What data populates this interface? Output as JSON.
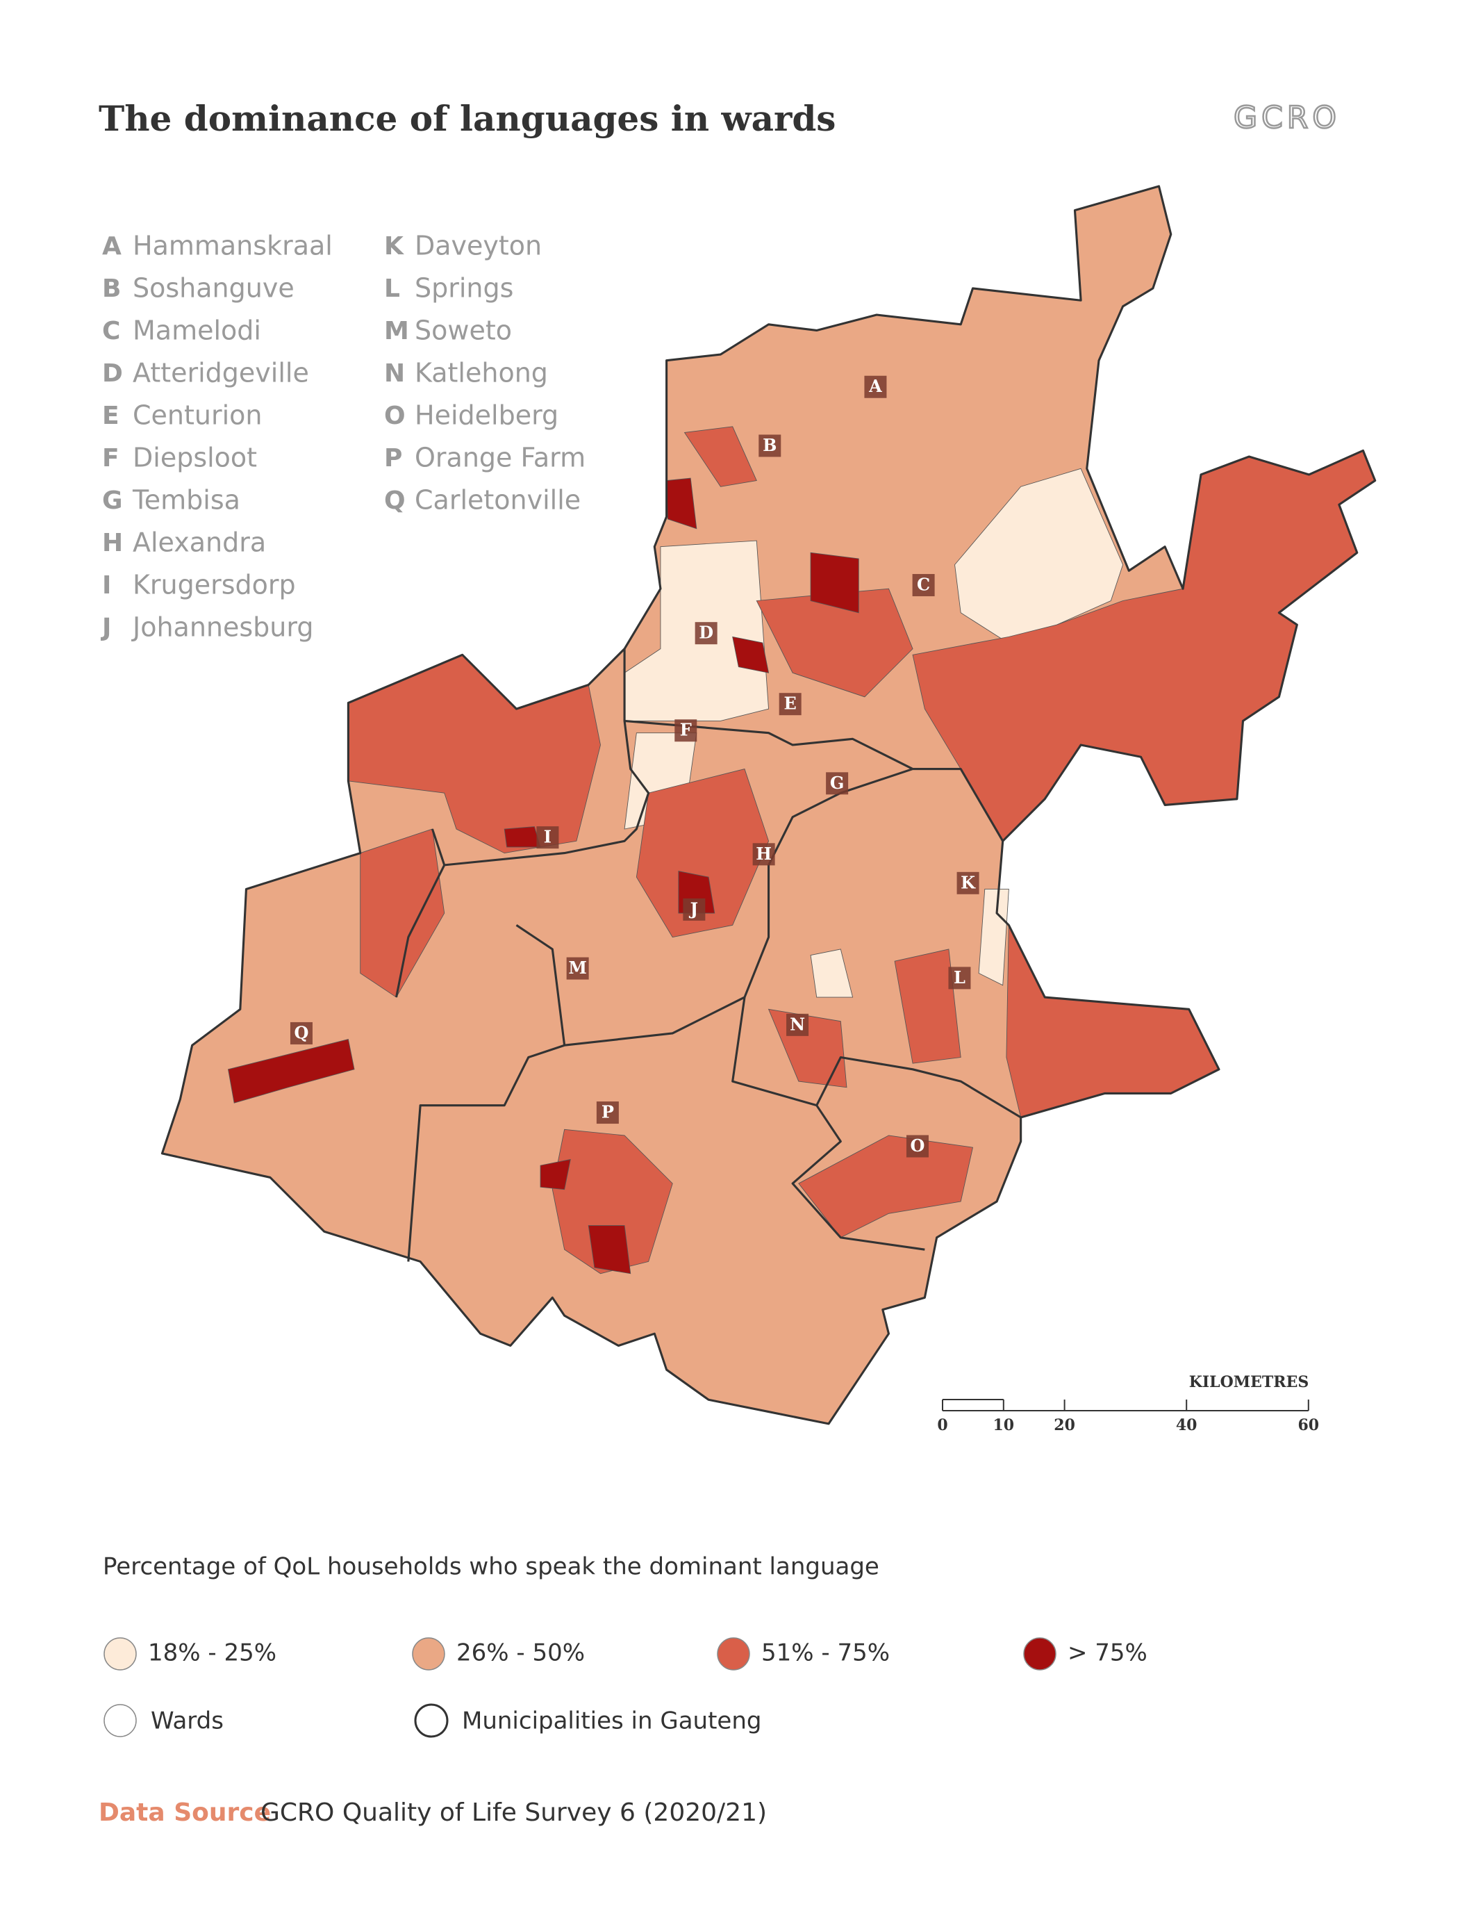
{
  "title": "The dominance of languages in wards",
  "logo": "GCRO",
  "places": [
    {
      "letter": "A",
      "name": "Hammanskraal"
    },
    {
      "letter": "B",
      "name": "Soshanguve"
    },
    {
      "letter": "C",
      "name": "Mamelodi"
    },
    {
      "letter": "D",
      "name": "Atteridgeville"
    },
    {
      "letter": "E",
      "name": "Centurion"
    },
    {
      "letter": "F",
      "name": "Diepsloot"
    },
    {
      "letter": "G",
      "name": "Tembisa"
    },
    {
      "letter": "H",
      "name": "Alexandra"
    },
    {
      "letter": "I",
      "name": "Krugersdorp"
    },
    {
      "letter": "J",
      "name": "Johannesburg"
    },
    {
      "letter": "K",
      "name": "Daveyton"
    },
    {
      "letter": "L",
      "name": "Springs"
    },
    {
      "letter": "M",
      "name": "Soweto"
    },
    {
      "letter": "N",
      "name": "Katlehong"
    },
    {
      "letter": "O",
      "name": "Heidelberg"
    },
    {
      "letter": "P",
      "name": "Orange Farm"
    },
    {
      "letter": "Q",
      "name": "Carletonville"
    }
  ],
  "scale": {
    "label": "KILOMETRES",
    "ticks": [
      0,
      10,
      20,
      40,
      60
    ]
  },
  "legend": {
    "title": "Percentage of QoL households who speak the dominant language",
    "classes": [
      {
        "label": "18% - 25%",
        "color": "#fdebd9"
      },
      {
        "label": "26% - 50%",
        "color": "#eaa885"
      },
      {
        "label": "51% - 75%",
        "color": "#d95f49"
      },
      {
        "label": "> 75%",
        "color": "#a50f0f"
      }
    ],
    "boundaries": [
      "Wards",
      "Municipalities in Gauteng"
    ]
  },
  "source": {
    "label": "Data Source",
    "text": "GCRO Quality of Life Survey 6 (2020/21)"
  }
}
